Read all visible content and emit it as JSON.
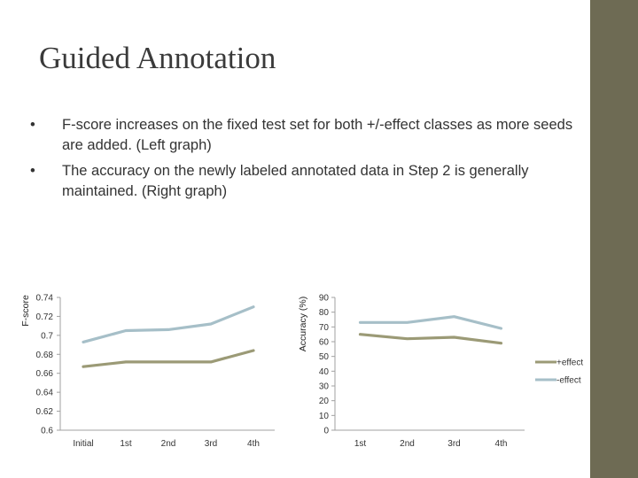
{
  "slide": {
    "title": "Guided Annotation",
    "bullets": [
      {
        "marker": "•",
        "text": "F-score increases on the fixed test set for both +/-effect classes as more seeds are added. (Left graph)"
      },
      {
        "marker": "•",
        "text": "The accuracy on the newly labeled annotated data in Step 2 is generally maintained. (Right graph)"
      }
    ]
  },
  "colors": {
    "sidebar": "#6e6b54",
    "plus_effect": "#9b9a76",
    "minus_effect": "#a6bfc8"
  },
  "chart_data": [
    {
      "type": "line",
      "title": "",
      "xlabel": "",
      "ylabel": "F-score",
      "categories": [
        "Initial",
        "1st",
        "2nd",
        "3rd",
        "4th"
      ],
      "yticks": [
        "0.6",
        "0.62",
        "0.64",
        "0.66",
        "0.68",
        "0.7",
        "0.72",
        "0.74"
      ],
      "ylim": [
        0.6,
        0.74
      ],
      "series": [
        {
          "name": "+effect",
          "values": [
            0.667,
            0.672,
            0.672,
            0.672,
            0.684
          ]
        },
        {
          "name": "-effect",
          "values": [
            0.693,
            0.705,
            0.706,
            0.712,
            0.73
          ]
        }
      ]
    },
    {
      "type": "line",
      "title": "",
      "xlabel": "",
      "ylabel": "Accuracy (%)",
      "categories": [
        "1st",
        "2nd",
        "3rd",
        "4th"
      ],
      "yticks": [
        "0",
        "10",
        "20",
        "30",
        "40",
        "50",
        "60",
        "70",
        "80",
        "90"
      ],
      "ylim": [
        0,
        90
      ],
      "legend": [
        "+effect",
        "-effect"
      ],
      "legend_position": "right",
      "series": [
        {
          "name": "+effect",
          "values": [
            65,
            62,
            63,
            59
          ]
        },
        {
          "name": "-effect",
          "values": [
            73,
            73,
            77,
            69
          ]
        }
      ]
    }
  ]
}
